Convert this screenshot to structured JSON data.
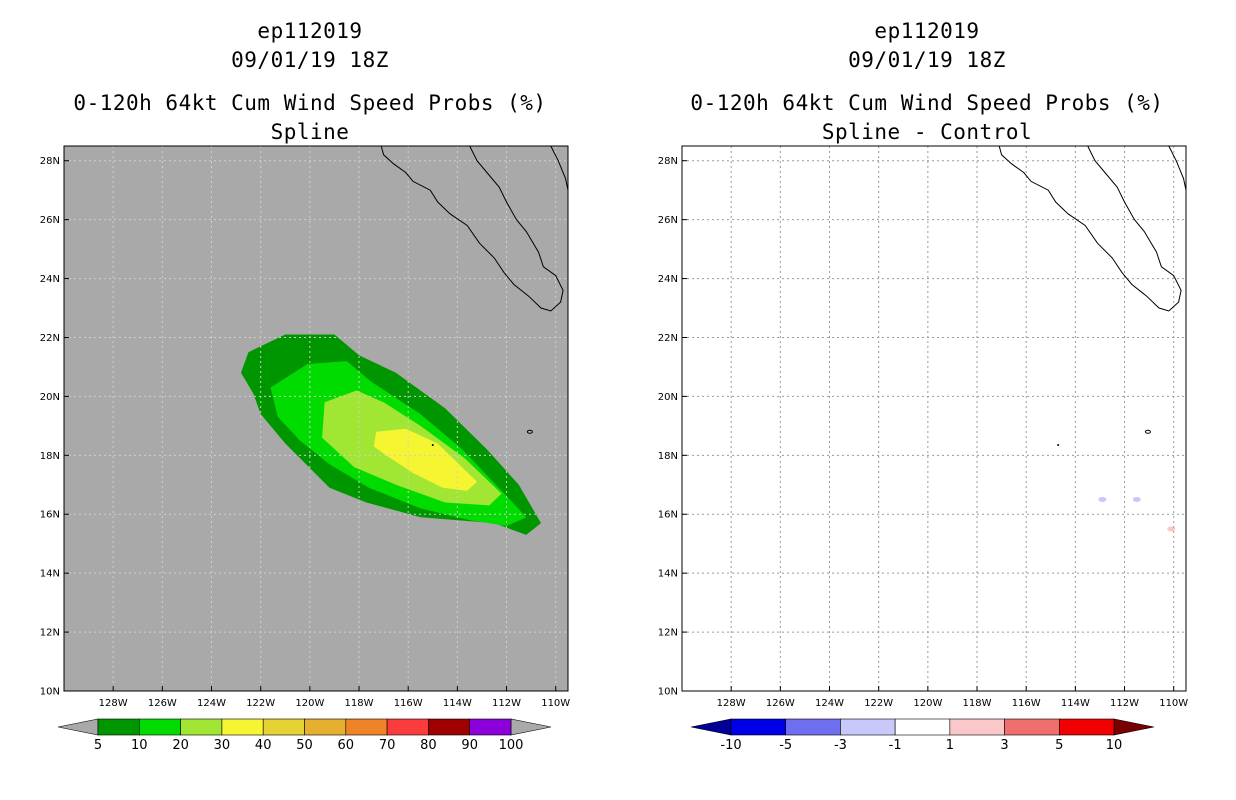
{
  "left_panel": {
    "title_line1": "ep112019",
    "title_line2": "09/01/19 18Z",
    "title_line3": "0-120h 64kt Cum Wind Speed Probs (%)",
    "title_line4": "Spline",
    "background_color": "#a9a9a9"
  },
  "right_panel": {
    "title_line1": "ep112019",
    "title_line2": "09/01/19 18Z",
    "title_line3": "0-120h 64kt Cum Wind Speed Probs (%)",
    "title_line4": "Spline - Control",
    "background_color": "#ffffff"
  },
  "chart_data": [
    {
      "type": "heatmap",
      "title": "0-120h 64kt Cum Wind Speed Probs (%) Spline",
      "storm": "ep112019",
      "time": "09/01/19 18Z",
      "xlim": [
        -130,
        -109.5
      ],
      "ylim": [
        10,
        28.5
      ],
      "x_ticks": [
        -128,
        -126,
        -124,
        -122,
        -120,
        -118,
        -116,
        -114,
        -112,
        -110
      ],
      "x_tick_labels": [
        "128W",
        "126W",
        "124W",
        "122W",
        "120W",
        "118W",
        "116W",
        "114W",
        "112W",
        "110W"
      ],
      "y_ticks": [
        10,
        12,
        14,
        16,
        18,
        20,
        22,
        24,
        26,
        28
      ],
      "y_tick_labels": [
        "10N",
        "12N",
        "14N",
        "16N",
        "18N",
        "20N",
        "22N",
        "24N",
        "26N",
        "28N"
      ],
      "grid": true,
      "colorbar": {
        "labels": [
          "5",
          "10",
          "20",
          "30",
          "40",
          "50",
          "60",
          "70",
          "80",
          "90",
          "100"
        ],
        "colors": [
          "#009600",
          "#00dc00",
          "#a0e632",
          "#f5f532",
          "#e6d232",
          "#e6af2d",
          "#f08228",
          "#fa3c3c",
          "#a00000",
          "#8c00dc"
        ],
        "low_triangle_color": "#a9a9a9",
        "high_triangle_color": "#a9a9a9"
      },
      "contours": [
        {
          "level": "5-10",
          "color": "#009600",
          "polygon": [
            [
              -122.5,
              21.5
            ],
            [
              -121,
              22.1
            ],
            [
              -119,
              22.1
            ],
            [
              -118,
              21.4
            ],
            [
              -116.5,
              20.8
            ],
            [
              -114.5,
              19.6
            ],
            [
              -112.8,
              18.2
            ],
            [
              -111.5,
              17
            ],
            [
              -110.6,
              15.7
            ],
            [
              -111.2,
              15.3
            ],
            [
              -112.5,
              15.7
            ],
            [
              -115.5,
              15.9
            ],
            [
              -117.7,
              16.4
            ],
            [
              -119.2,
              16.9
            ],
            [
              -121,
              18.4
            ],
            [
              -122,
              19.4
            ],
            [
              -122.3,
              20.1
            ],
            [
              -122.8,
              20.8
            ]
          ]
        },
        {
          "level": "10-20",
          "color": "#00dc00",
          "polygon": [
            [
              -121.6,
              20.3
            ],
            [
              -120.1,
              21.1
            ],
            [
              -118.5,
              21.2
            ],
            [
              -117.5,
              20.5
            ],
            [
              -115.5,
              19.4
            ],
            [
              -113.8,
              18.2
            ],
            [
              -112.2,
              16.8
            ],
            [
              -111.2,
              15.9
            ],
            [
              -112,
              15.6
            ],
            [
              -113.5,
              15.8
            ],
            [
              -115.5,
              16.2
            ],
            [
              -117.6,
              16.9
            ],
            [
              -119.2,
              17.7
            ],
            [
              -120.4,
              18.5
            ],
            [
              -121.3,
              19.3
            ]
          ]
        },
        {
          "level": "20-30",
          "color": "#a0e632",
          "polygon": [
            [
              -119.4,
              19.8
            ],
            [
              -118.1,
              20.2
            ],
            [
              -117,
              19.8
            ],
            [
              -115.5,
              19
            ],
            [
              -113.7,
              17.9
            ],
            [
              -112.2,
              16.7
            ],
            [
              -112.7,
              16.3
            ],
            [
              -114.5,
              16.4
            ],
            [
              -116.5,
              17
            ],
            [
              -118.2,
              17.6
            ],
            [
              -119.5,
              18.6
            ]
          ]
        },
        {
          "level": "30-40",
          "color": "#f5f532",
          "polygon": [
            [
              -117.3,
              18.8
            ],
            [
              -116.1,
              18.9
            ],
            [
              -114.8,
              18.4
            ],
            [
              -113.2,
              17.1
            ],
            [
              -113.6,
              16.8
            ],
            [
              -114.6,
              16.9
            ],
            [
              -115.8,
              17.4
            ],
            [
              -116.9,
              18
            ],
            [
              -117.4,
              18.3
            ]
          ]
        }
      ],
      "markers": [
        {
          "x": -115,
          "y": 18.35,
          "color": "#000000"
        }
      ]
    },
    {
      "type": "heatmap",
      "title": "0-120h 64kt Cum Wind Speed Probs (%) Spline - Control",
      "storm": "ep112019",
      "time": "09/01/19 18Z",
      "xlim": [
        -130,
        -109.5
      ],
      "ylim": [
        10,
        28.5
      ],
      "x_ticks": [
        -128,
        -126,
        -124,
        -122,
        -120,
        -118,
        -116,
        -114,
        -112,
        -110
      ],
      "x_tick_labels": [
        "128W",
        "126W",
        "124W",
        "122W",
        "120W",
        "118W",
        "116W",
        "114W",
        "112W",
        "110W"
      ],
      "y_ticks": [
        10,
        12,
        14,
        16,
        18,
        20,
        22,
        24,
        26,
        28
      ],
      "y_tick_labels": [
        "10N",
        "12N",
        "14N",
        "16N",
        "18N",
        "20N",
        "22N",
        "24N",
        "26N",
        "28N"
      ],
      "grid": true,
      "colorbar": {
        "labels": [
          "-10",
          "-5",
          "-3",
          "-1",
          "1",
          "3",
          "5",
          "10"
        ],
        "colors": [
          "#0000e6",
          "#6e6ef0",
          "#c8c8fa",
          "#ffffff",
          "#fac8c8",
          "#f06e6e",
          "#f00000"
        ],
        "low_triangle_color": "#000096",
        "high_triangle_color": "#780000"
      },
      "blobs": [
        {
          "x": -112.9,
          "y": 16.5,
          "color": "#c8c8fa"
        },
        {
          "x": -111.5,
          "y": 16.5,
          "color": "#c8c8fa"
        },
        {
          "x": -110.1,
          "y": 15.5,
          "color": "#fac8c8"
        }
      ],
      "markers": [
        {
          "x": -114.7,
          "y": 18.35,
          "color": "#000000"
        }
      ]
    }
  ]
}
